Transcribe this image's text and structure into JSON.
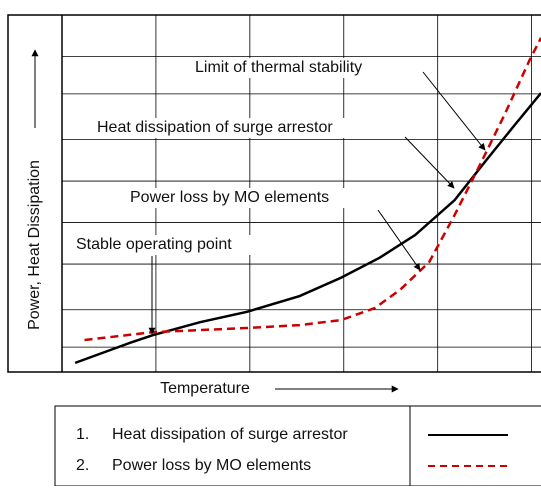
{
  "chart_data": {
    "type": "line",
    "x_label": "Temperature",
    "y_label": "Power, Heat Dissipation",
    "xlim": [
      0,
      5.1
    ],
    "ylim": [
      0,
      8.6
    ],
    "xticks": [
      1,
      2,
      3,
      4,
      5
    ],
    "yticks": [
      0.6,
      1.5,
      2.6,
      3.6,
      4.6,
      5.6,
      6.7,
      7.6
    ],
    "grid": true,
    "series": [
      {
        "name": "Heat dissipation of surge arrestor",
        "color": "#000000",
        "dash": false,
        "x": [
          0.14,
          0.72,
          0.97,
          1.47,
          1.97,
          2.53,
          2.97,
          3.38,
          3.76,
          4.18,
          4.52,
          4.82,
          5.1
        ],
        "values": [
          0.22,
          0.7,
          0.89,
          1.2,
          1.45,
          1.83,
          2.27,
          2.75,
          3.3,
          4.14,
          5.11,
          5.95,
          6.72
        ]
      },
      {
        "name": "Power loss by MO elements",
        "color": "#cc0000",
        "dash": true,
        "x": [
          0.24,
          0.97,
          1.97,
          2.53,
          2.97,
          3.33,
          3.6,
          3.91,
          4.18,
          4.45,
          4.71,
          4.98,
          5.1
        ],
        "values": [
          0.77,
          0.96,
          1.06,
          1.13,
          1.25,
          1.54,
          1.98,
          2.65,
          3.78,
          4.99,
          6.19,
          7.52,
          8.05
        ]
      }
    ],
    "legend_numbers": [
      "1.",
      "2."
    ],
    "annotations": [
      "Limit of thermal stability",
      "Heat dissipation of surge arrestor",
      "Power loss by MO elements",
      "Stable operating point"
    ]
  }
}
